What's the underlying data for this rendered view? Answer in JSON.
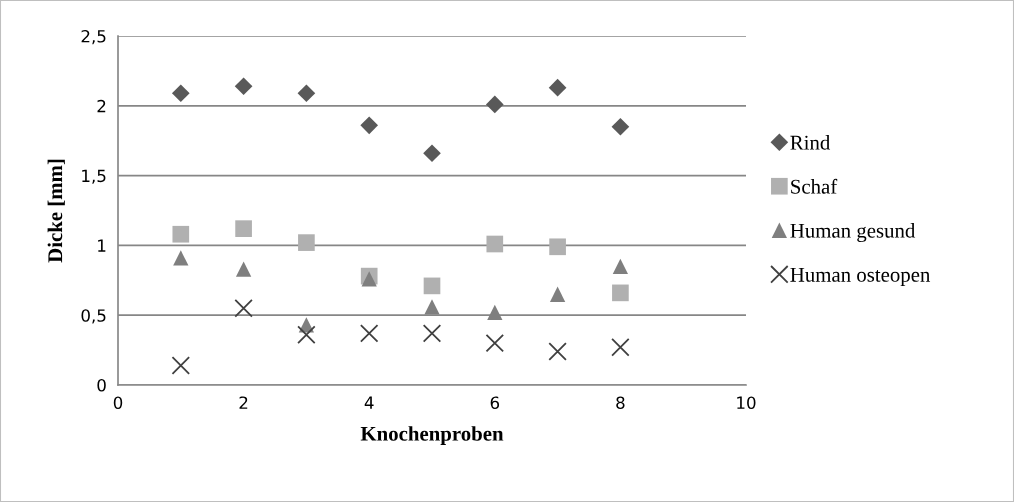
{
  "chart_data": {
    "type": "scatter",
    "xlabel": "Knochenproben",
    "ylabel": "Dicke [mm]",
    "x": [
      1,
      2,
      3,
      4,
      5,
      6,
      7,
      8
    ],
    "xlim": [
      0,
      10
    ],
    "xticks": [
      0,
      2,
      4,
      6,
      8,
      10
    ],
    "ylim": [
      0,
      2.5
    ],
    "yticks": [
      {
        "value": 0,
        "label": "0"
      },
      {
        "value": 0.5,
        "label": "0,5"
      },
      {
        "value": 1,
        "label": "1"
      },
      {
        "value": 1.5,
        "label": "1,5"
      },
      {
        "value": 2,
        "label": "2"
      },
      {
        "value": 2.5,
        "label": "2,5"
      }
    ],
    "grid": "y",
    "legend": "right",
    "series": [
      {
        "name": "Rind",
        "color": "#595959",
        "marker": "diamond",
        "values": [
          2.09,
          2.14,
          2.09,
          1.86,
          1.66,
          2.01,
          2.13,
          1.85
        ]
      },
      {
        "name": "Schaf",
        "color": "#b0b0b0",
        "marker": "square",
        "values": [
          1.08,
          1.12,
          1.02,
          0.78,
          0.71,
          1.01,
          0.99,
          0.66
        ]
      },
      {
        "name": "Human gesund",
        "color": "#7f7f7f",
        "marker": "triangle",
        "values": [
          0.91,
          0.83,
          0.43,
          0.76,
          0.56,
          0.52,
          0.65,
          0.85
        ]
      },
      {
        "name": "Human osteopen",
        "color": "#404040",
        "marker": "cross",
        "values": [
          0.14,
          0.55,
          0.36,
          0.37,
          0.37,
          0.3,
          0.24,
          0.27
        ]
      }
    ]
  }
}
